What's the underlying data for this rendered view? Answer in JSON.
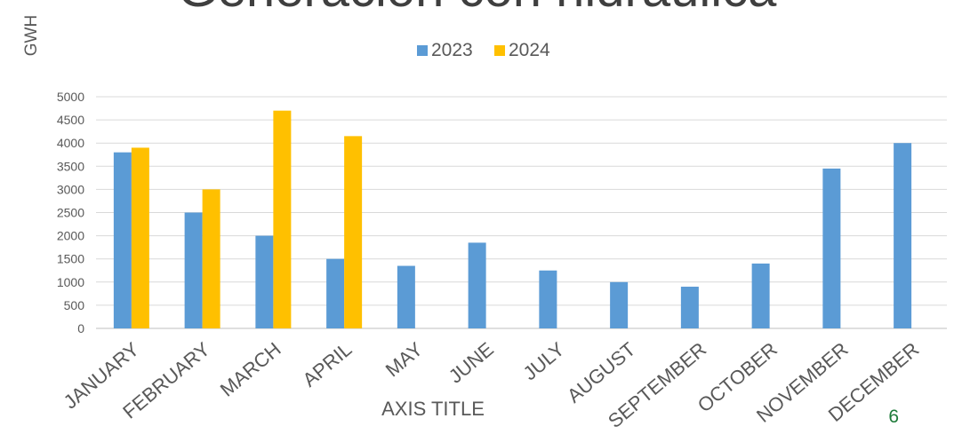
{
  "slide": {
    "title": "Generación con hidráulica",
    "page_number": "6"
  },
  "chart_data": {
    "type": "bar",
    "title": "",
    "xlabel": "AXIS TITLE",
    "ylabel": "GWH",
    "ylim": [
      0,
      5000
    ],
    "yticks": [
      0,
      500,
      1000,
      1500,
      2000,
      2500,
      3000,
      3500,
      4000,
      4500,
      5000
    ],
    "grid": true,
    "legend_position": "top",
    "categories": [
      "JANUARY",
      "FEBRUARY",
      "MARCH",
      "APRIL",
      "MAY",
      "JUNE",
      "JULY",
      "AUGUST",
      "SEPTEMBER",
      "OCTOBER",
      "NOVEMBER",
      "DECEMBER"
    ],
    "series": [
      {
        "name": "2023",
        "color": "#5b9bd5",
        "values": [
          3800,
          2500,
          2000,
          1500,
          1350,
          1850,
          1250,
          1000,
          900,
          1400,
          3450,
          4000
        ]
      },
      {
        "name": "2024",
        "color": "#ffc000",
        "values": [
          3900,
          3000,
          4700,
          4150,
          null,
          null,
          null,
          null,
          null,
          null,
          null,
          null
        ]
      }
    ]
  }
}
